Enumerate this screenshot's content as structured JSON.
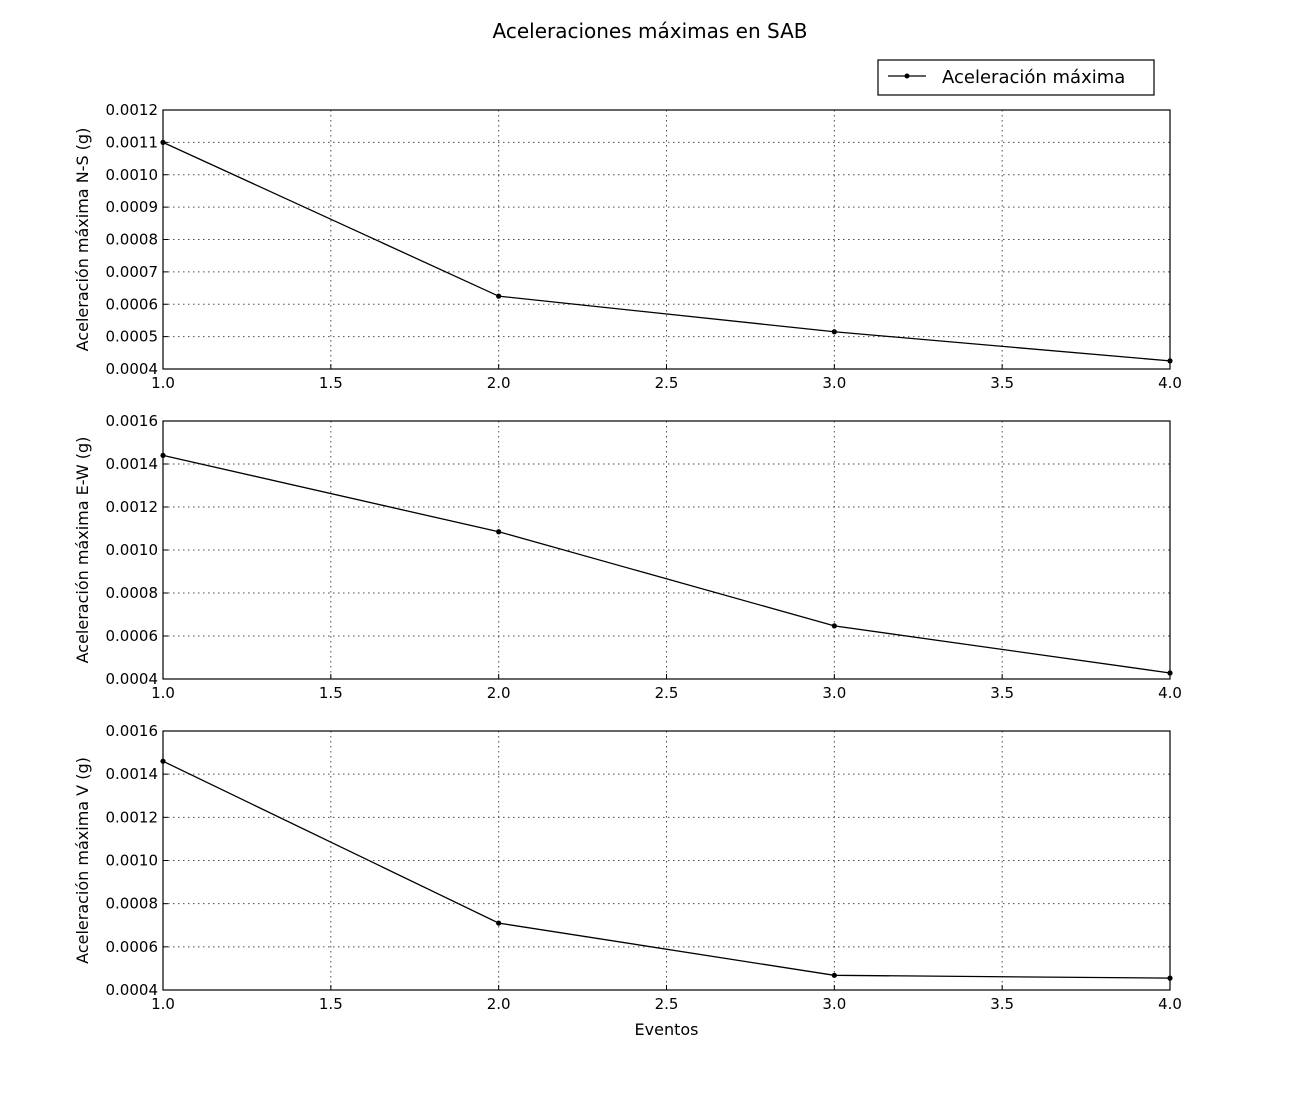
{
  "chart_data": [
    {
      "type": "line",
      "title": "Aceleraciones máximas en SAB",
      "xlabel": "",
      "ylabel": "Aceleración máxima N-S (g)",
      "xlim": [
        1.0,
        4.0
      ],
      "ylim": [
        0.0004,
        0.0012
      ],
      "xticks": [
        "1.0",
        "1.5",
        "2.0",
        "2.5",
        "3.0",
        "3.5",
        "4.0"
      ],
      "yticks": [
        "0.0004",
        "0.0005",
        "0.0006",
        "0.0007",
        "0.0008",
        "0.0009",
        "0.0010",
        "0.0011",
        "0.0012"
      ],
      "grid": true,
      "legend": {
        "placement": "top-right",
        "entries": [
          "Aceleración máxima"
        ]
      },
      "series": [
        {
          "name": "Aceleración máxima",
          "x": [
            1,
            2,
            3,
            4
          ],
          "y": [
            0.0011,
            0.000625,
            0.000515,
            0.000425
          ],
          "color": "#000000",
          "marker": "dot"
        }
      ]
    },
    {
      "type": "line",
      "xlabel": "",
      "ylabel": "Aceleración máxima E-W (g)",
      "xlim": [
        1.0,
        4.0
      ],
      "ylim": [
        0.0004,
        0.0016
      ],
      "xticks": [
        "1.0",
        "1.5",
        "2.0",
        "2.5",
        "3.0",
        "3.5",
        "4.0"
      ],
      "yticks": [
        "0.0004",
        "0.0006",
        "0.0008",
        "0.0010",
        "0.0012",
        "0.0014",
        "0.0016"
      ],
      "grid": true,
      "series": [
        {
          "name": "Aceleración máxima",
          "x": [
            1,
            2,
            3,
            4
          ],
          "y": [
            0.00144,
            0.001085,
            0.000647,
            0.000428
          ],
          "color": "#000000",
          "marker": "dot"
        }
      ]
    },
    {
      "type": "line",
      "xlabel": "Eventos",
      "ylabel": "Aceleración máxima V (g)",
      "xlim": [
        1.0,
        4.0
      ],
      "ylim": [
        0.0004,
        0.0016
      ],
      "xticks": [
        "1.0",
        "1.5",
        "2.0",
        "2.5",
        "3.0",
        "3.5",
        "4.0"
      ],
      "yticks": [
        "0.0004",
        "0.0006",
        "0.0008",
        "0.0010",
        "0.0012",
        "0.0014",
        "0.0016"
      ],
      "grid": true,
      "series": [
        {
          "name": "Aceleración máxima",
          "x": [
            1,
            2,
            3,
            4
          ],
          "y": [
            0.00146,
            0.00071,
            0.000468,
            0.000455
          ],
          "color": "#000000",
          "marker": "dot"
        }
      ]
    }
  ]
}
